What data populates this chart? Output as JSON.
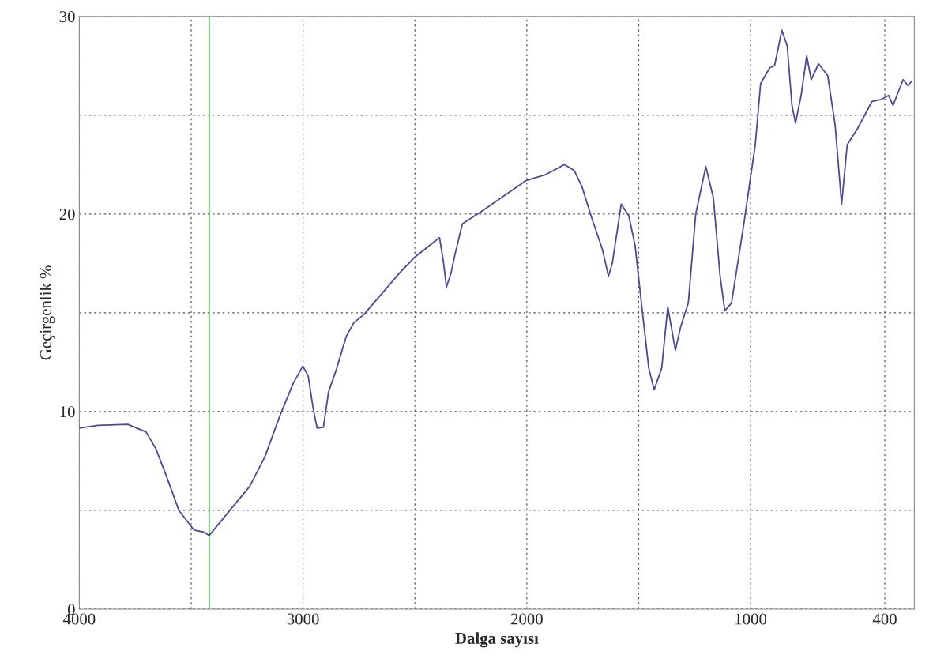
{
  "chart_data": {
    "type": "line",
    "xlabel": "Dalga sayısı",
    "ylabel": "Geçirgenlik %",
    "series": [
      {
        "color": "#4a4a9c",
        "x": [
          4000,
          3918,
          3783,
          3701,
          3657,
          3613,
          3555,
          3487,
          3443,
          3419,
          3327,
          3239,
          3171,
          3103,
          3045,
          3001,
          2977,
          2954,
          2937,
          2909,
          2886,
          2852,
          2807,
          2773,
          2729,
          2570,
          2502,
          2390,
          2373,
          2359,
          2339,
          2322,
          2288,
          2206,
          2002,
          1914,
          1832,
          1788,
          1754,
          1710,
          1662,
          1635,
          1618,
          1578,
          1544,
          1516,
          1482,
          1455,
          1431,
          1397,
          1370,
          1353,
          1336,
          1312,
          1278,
          1245,
          1200,
          1166,
          1136,
          1115,
          1085,
          1030,
          979,
          955,
          914,
          893,
          860,
          836,
          815,
          799,
          774,
          749,
          729,
          696,
          655,
          622,
          593,
          568,
          523,
          457,
          416,
          383,
          363,
          318,
          297,
          281
        ],
        "values": [
          9.16,
          9.3,
          9.35,
          8.96,
          8.1,
          6.8,
          5.0,
          4.0,
          3.9,
          3.73,
          5.0,
          6.2,
          7.7,
          9.8,
          11.4,
          12.3,
          11.8,
          10.1,
          9.16,
          9.2,
          11.0,
          12.1,
          13.8,
          14.5,
          14.9,
          17.0,
          17.8,
          18.8,
          17.6,
          16.3,
          17.0,
          17.9,
          19.5,
          20.1,
          21.7,
          22.0,
          22.5,
          22.2,
          21.4,
          19.8,
          18.2,
          16.85,
          17.5,
          20.5,
          19.9,
          18.4,
          14.9,
          12.2,
          11.1,
          12.2,
          15.3,
          14.2,
          13.1,
          14.3,
          15.5,
          20.0,
          22.4,
          20.8,
          16.85,
          15.1,
          15.5,
          19.5,
          23.5,
          26.6,
          27.4,
          27.5,
          29.3,
          28.5,
          25.5,
          24.6,
          26.0,
          28.0,
          26.8,
          27.6,
          27.0,
          24.5,
          20.5,
          23.5,
          24.3,
          25.7,
          25.8,
          26.0,
          25.5,
          26.8,
          26.5,
          26.7
        ]
      }
    ],
    "xlim": [
      4000,
      268
    ],
    "ylim": [
      0,
      30
    ],
    "xticks": [
      4000,
      {
        "value": 3500,
        "label": null
      },
      3000,
      {
        "value": 2500,
        "label": null
      },
      2000,
      {
        "value": 1500,
        "label": null
      },
      1000,
      400
    ],
    "yticks": [
      0,
      {
        "value": 5,
        "label": null
      },
      10,
      {
        "value": 15,
        "label": null
      },
      20,
      {
        "value": 25,
        "label": null
      },
      30
    ],
    "grid": true,
    "ref_lines": [
      {
        "axis": "x",
        "value": 3419,
        "color": "#7fd17f"
      }
    ]
  }
}
